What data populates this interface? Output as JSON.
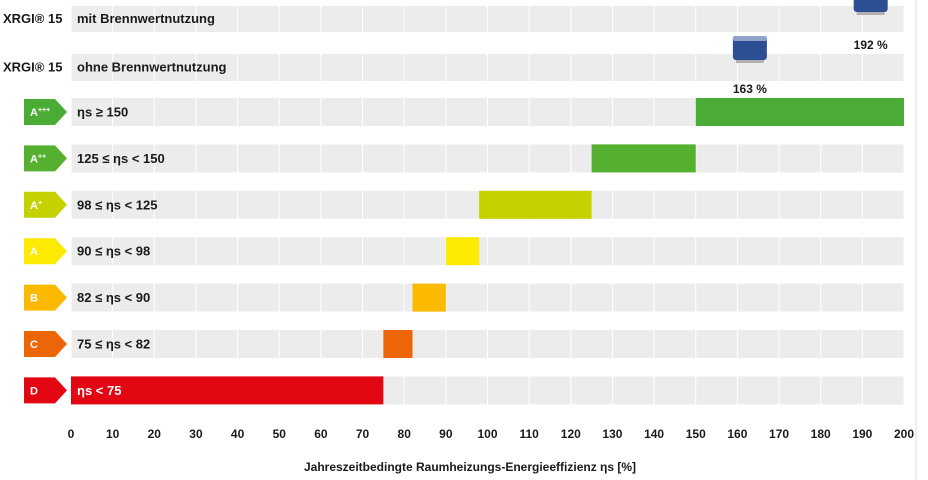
{
  "chart_data": {
    "type": "bar",
    "title": "",
    "xlabel": "Jahreszeitbedingte Raumheizungs-Energieeffizienz ηs [%]",
    "ylabel": "",
    "xlim": [
      0,
      200
    ],
    "x_ticks": [
      0,
      10,
      20,
      30,
      40,
      50,
      60,
      70,
      80,
      90,
      100,
      110,
      120,
      130,
      140,
      150,
      160,
      170,
      180,
      190,
      200
    ],
    "grid": true,
    "products": [
      {
        "model": "XRGI® 15",
        "label": "mit Brennwertnutzung",
        "value": 192,
        "value_label": "192 %",
        "icon": "chp-unit-icon"
      },
      {
        "model": "XRGI® 15",
        "label": "ohne Brennwertnutzung",
        "value": 163,
        "value_label": "163 %",
        "icon": "chp-unit-icon"
      }
    ],
    "classes": [
      {
        "cls": "A",
        "sup": "+++",
        "label": "ηs ≥ 150",
        "start": 150,
        "end": 200,
        "color": "#4aab35"
      },
      {
        "cls": "A",
        "sup": "++",
        "label": "125 ≤ ηs < 150",
        "start": 125,
        "end": 150,
        "color": "#55b030"
      },
      {
        "cls": "A",
        "sup": "+",
        "label": "98 ≤ ηs < 125",
        "start": 98,
        "end": 125,
        "color": "#c6d200"
      },
      {
        "cls": "A",
        "sup": "",
        "label": "90 ≤ ηs < 98",
        "start": 90,
        "end": 98,
        "color": "#fcea00"
      },
      {
        "cls": "B",
        "sup": "",
        "label": "82 ≤ ηs < 90",
        "start": 82,
        "end": 90,
        "color": "#fbba00"
      },
      {
        "cls": "C",
        "sup": "",
        "label": "75 ≤ ηs < 82",
        "start": 75,
        "end": 82,
        "color": "#ec6608"
      },
      {
        "cls": "D",
        "sup": "",
        "label": "ηs < 75",
        "start": 0,
        "end": 75,
        "color": "#e30613"
      }
    ]
  }
}
